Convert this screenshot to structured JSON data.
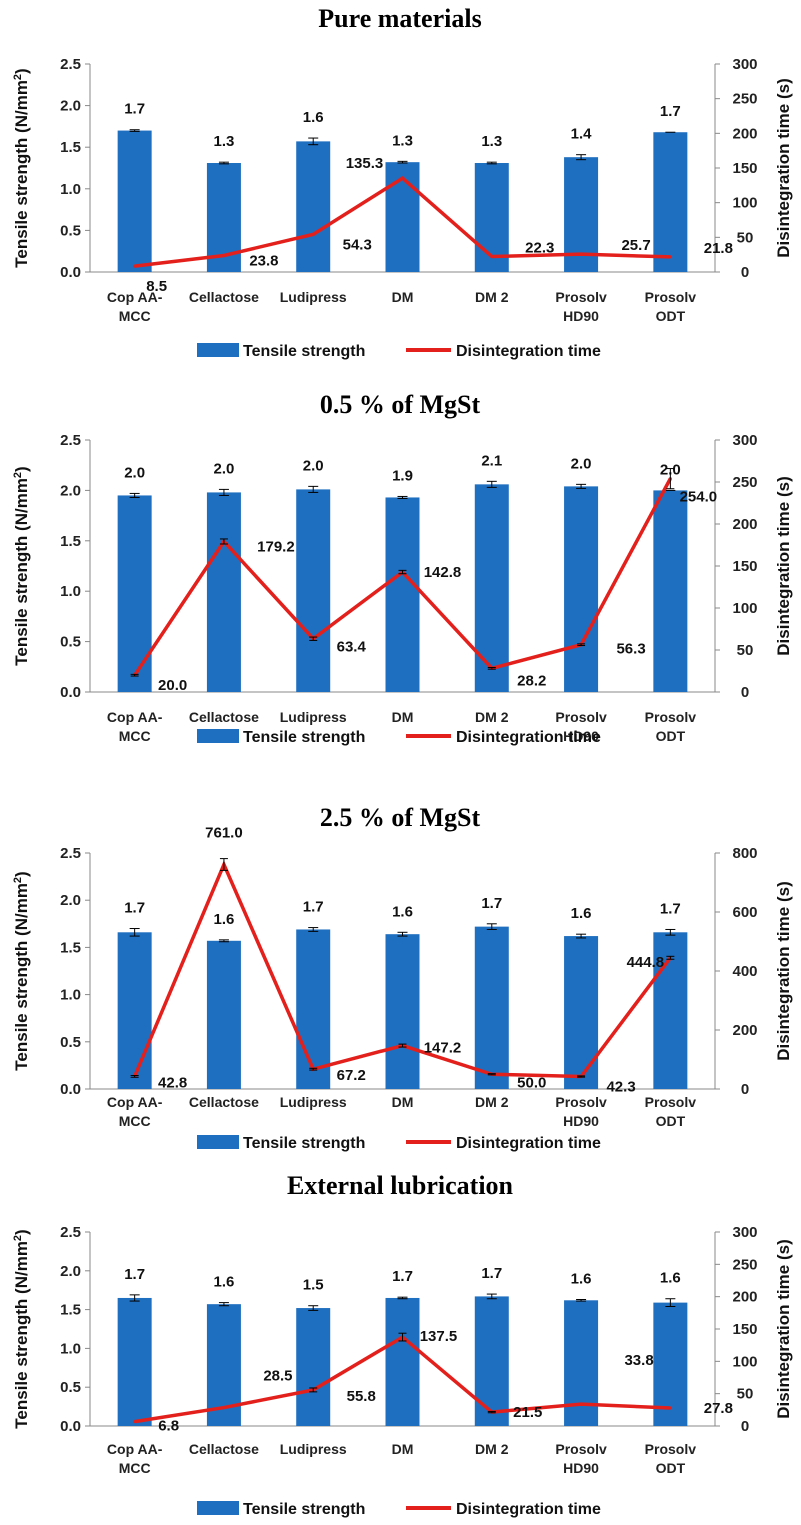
{
  "chart_data": [
    {
      "type": "bar",
      "title": "Pure materials",
      "categories": [
        [
          "Cop AA-",
          "MCC"
        ],
        [
          "Cellactose"
        ],
        [
          "Ludipress"
        ],
        [
          "DM"
        ],
        [
          "DM 2"
        ],
        [
          "Prosolv",
          "HD90"
        ],
        [
          "Prosolv",
          "ODT"
        ]
      ],
      "ylabel": "Tensile strength (N/mm²)",
      "y2label": "Disintegration time (s)",
      "ylim": [
        0,
        2.5
      ],
      "yticks": [
        "0.0",
        "0.5",
        "1.0",
        "1.5",
        "2.0",
        "2.5"
      ],
      "y2lim": [
        0,
        300
      ],
      "y2ticks": [
        "0",
        "50",
        "100",
        "150",
        "200",
        "250",
        "300"
      ],
      "series": [
        {
          "name": "Tensile strength",
          "kind": "bar",
          "color": "#1f6fc0",
          "values": [
            1.7,
            1.31,
            1.57,
            1.32,
            1.31,
            1.38,
            1.68
          ],
          "errors": [
            0.01,
            0.01,
            0.04,
            0.01,
            0.01,
            0.03,
            0.0
          ],
          "labels": [
            "1.7",
            "1.3",
            "1.6",
            "1.3",
            "1.3",
            "1.4",
            "1.7"
          ]
        },
        {
          "name": "Disintegration time",
          "kind": "line",
          "axis": "secondary",
          "color": "#e3201b",
          "values": [
            8.5,
            23.8,
            54.3,
            135.3,
            22.3,
            25.7,
            21.8
          ],
          "errors": [
            0,
            0,
            0,
            0,
            0,
            0,
            0
          ],
          "labels": [
            "8.5",
            "23.8",
            "54.3",
            "135.3",
            "22.3",
            "25.7",
            "21.8"
          ]
        }
      ],
      "legend_position": "bottom"
    },
    {
      "type": "bar",
      "title": "0.5 % of MgSt",
      "categories": [
        [
          "Cop AA-",
          "MCC"
        ],
        [
          "Cellactose"
        ],
        [
          "Ludipress"
        ],
        [
          "DM"
        ],
        [
          "DM 2"
        ],
        [
          "Prosolv",
          "HD90"
        ],
        [
          "Prosolv",
          "ODT"
        ]
      ],
      "ylabel": "Tensile strength (N/mm²)",
      "y2label": "Disintegration time (s)",
      "ylim": [
        0,
        2.5
      ],
      "yticks": [
        "0.0",
        "0.5",
        "1.0",
        "1.5",
        "2.0",
        "2.5"
      ],
      "y2lim": [
        0,
        300
      ],
      "y2ticks": [
        "0",
        "50",
        "100",
        "150",
        "200",
        "250",
        "300"
      ],
      "series": [
        {
          "name": "Tensile strength",
          "kind": "bar",
          "color": "#1f6fc0",
          "values": [
            1.95,
            1.98,
            2.01,
            1.93,
            2.06,
            2.04,
            2.0
          ],
          "errors": [
            0.02,
            0.03,
            0.03,
            0.01,
            0.03,
            0.02,
            0.0
          ],
          "labels": [
            "2.0",
            "2.0",
            "2.0",
            "1.9",
            "2.1",
            "2.0",
            "2.0"
          ]
        },
        {
          "name": "Disintegration time",
          "kind": "line",
          "axis": "secondary",
          "color": "#e3201b",
          "values": [
            20.0,
            179.2,
            63.4,
            142.8,
            28.2,
            56.3,
            254.0
          ],
          "errors": [
            1,
            3,
            2,
            2,
            1,
            1,
            12
          ],
          "labels": [
            "20.0",
            "179.2",
            "63.4",
            "142.8",
            "28.2",
            "56.3",
            "254.0"
          ]
        }
      ],
      "legend_position": "bottom"
    },
    {
      "type": "bar",
      "title": "2.5 % of MgSt",
      "categories": [
        [
          "Cop AA-",
          "MCC"
        ],
        [
          "Cellactose"
        ],
        [
          "Ludipress"
        ],
        [
          "DM"
        ],
        [
          "DM 2"
        ],
        [
          "Prosolv",
          "HD90"
        ],
        [
          "Prosolv",
          "ODT"
        ]
      ],
      "ylabel": "Tensile strength (N/mm²)",
      "y2label": "Disintegration time (s)",
      "ylim": [
        0,
        2.5
      ],
      "yticks": [
        "0.0",
        "0.5",
        "1.0",
        "1.5",
        "2.0",
        "2.5"
      ],
      "y2lim": [
        0,
        800
      ],
      "y2ticks": [
        "0",
        "200",
        "400",
        "600",
        "800"
      ],
      "series": [
        {
          "name": "Tensile strength",
          "kind": "bar",
          "color": "#1f6fc0",
          "values": [
            1.66,
            1.57,
            1.69,
            1.64,
            1.72,
            1.62,
            1.66
          ],
          "errors": [
            0.04,
            0.01,
            0.02,
            0.02,
            0.03,
            0.02,
            0.03
          ],
          "labels": [
            "1.7",
            "1.6",
            "1.7",
            "1.6",
            "1.7",
            "1.6",
            "1.7"
          ]
        },
        {
          "name": "Disintegration time",
          "kind": "line",
          "axis": "secondary",
          "color": "#e3201b",
          "values": [
            42.8,
            761.0,
            67.2,
            147.2,
            50.0,
            42.3,
            444.8
          ],
          "errors": [
            3,
            20,
            3,
            5,
            2,
            2,
            5
          ],
          "labels": [
            "42.8",
            "761.0",
            "67.2",
            "147.2",
            "50.0",
            "42.3",
            "444.8"
          ]
        }
      ],
      "legend_position": "bottom"
    },
    {
      "type": "bar",
      "title": "External lubrication",
      "categories": [
        [
          "Cop AA-",
          "MCC"
        ],
        [
          "Cellactose"
        ],
        [
          "Ludipress"
        ],
        [
          "DM"
        ],
        [
          "DM 2"
        ],
        [
          "Prosolv",
          "HD90"
        ],
        [
          "Prosolv",
          "ODT"
        ]
      ],
      "ylabel": "Tensile strength (N/mm²)",
      "y2label": "Disintegration time (s)",
      "ylim": [
        0,
        2.5
      ],
      "yticks": [
        "0.0",
        "0.5",
        "1.0",
        "1.5",
        "2.0",
        "2.5"
      ],
      "y2lim": [
        0,
        300
      ],
      "y2ticks": [
        "0",
        "50",
        "100",
        "150",
        "200",
        "250",
        "300"
      ],
      "series": [
        {
          "name": "Tensile strength",
          "kind": "bar",
          "color": "#1f6fc0",
          "values": [
            1.65,
            1.57,
            1.52,
            1.65,
            1.67,
            1.62,
            1.59
          ],
          "errors": [
            0.04,
            0.02,
            0.03,
            0.01,
            0.03,
            0.01,
            0.05
          ],
          "labels": [
            "1.7",
            "1.6",
            "1.5",
            "1.7",
            "1.7",
            "1.6",
            "1.6"
          ]
        },
        {
          "name": "Disintegration time",
          "kind": "line",
          "axis": "secondary",
          "color": "#e3201b",
          "values": [
            6.8,
            28.5,
            55.8,
            137.5,
            21.5,
            33.8,
            27.8
          ],
          "errors": [
            0,
            0,
            3,
            6,
            1,
            0,
            0
          ],
          "labels": [
            "6.8",
            "28.5",
            "55.8",
            "137.5",
            "21.5",
            "33.8",
            "27.8"
          ]
        }
      ],
      "legend_position": "bottom"
    }
  ]
}
